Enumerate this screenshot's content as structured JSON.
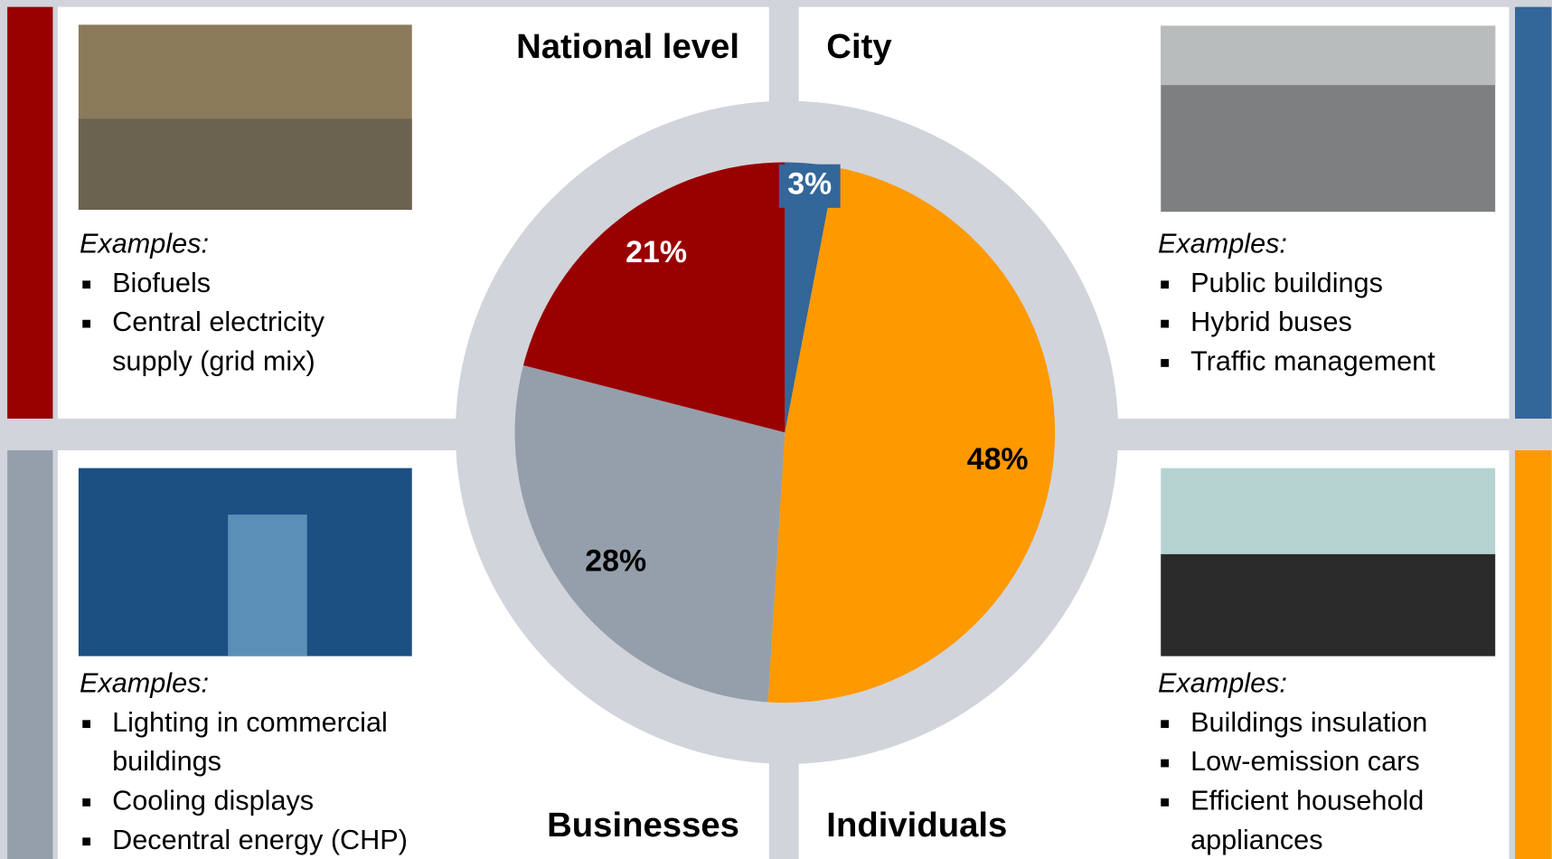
{
  "chart_data": {
    "type": "pie",
    "categories": [
      "City",
      "Individuals",
      "Businesses",
      "National level"
    ],
    "values": [
      3,
      48,
      28,
      21
    ],
    "value_labels": [
      "3%",
      "48%",
      "28%",
      "21%"
    ],
    "colors": [
      "#336699",
      "#ff9900",
      "#959fab",
      "#990000"
    ]
  },
  "panels": [
    {
      "examples_label": "Examples:",
      "items": [
        [
          "Biofuels"
        ],
        [
          "Central electricity",
          "supply (grid mix)"
        ]
      ]
    },
    {
      "examples_label": "Examples:",
      "items": [
        [
          "Public buildings"
        ],
        [
          "Hybrid buses"
        ],
        [
          "Traffic management"
        ]
      ]
    },
    {
      "examples_label": "Examples:",
      "items": [
        [
          "Lighting in commercial",
          "buildings"
        ],
        [
          "Cooling displays"
        ],
        [
          "Decentral energy (CHP)"
        ]
      ]
    },
    {
      "examples_label": "Examples:",
      "items": [
        [
          "Buildings insulation"
        ],
        [
          "Low-emission cars"
        ],
        [
          "Efficient household",
          "appliances"
        ]
      ]
    }
  ]
}
